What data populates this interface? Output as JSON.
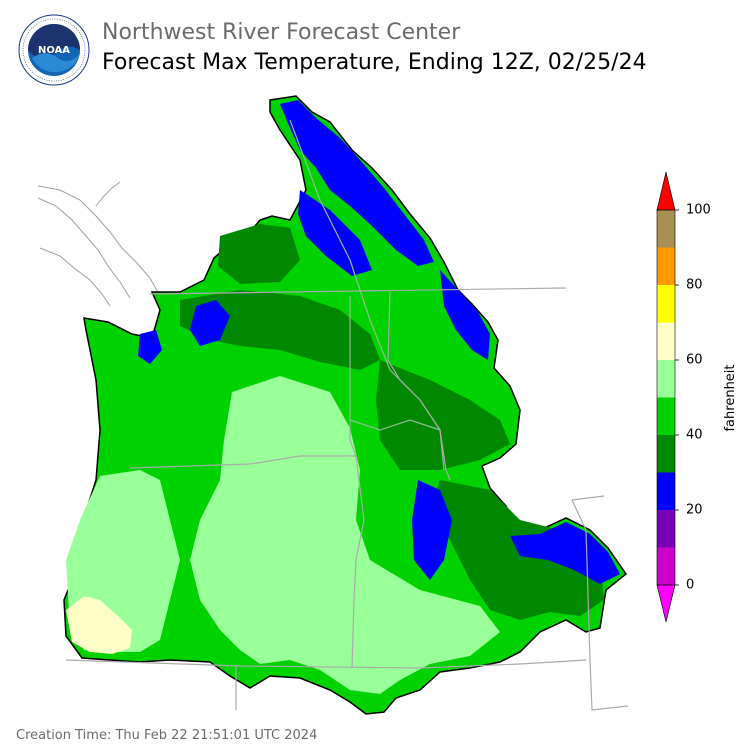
{
  "header": {
    "agency": "Northwest River Forecast Center",
    "product": "Forecast Max Temperature, Ending 12Z, 02/25/24",
    "logo_text": "NOAA",
    "logo_ring_text": "NATIONAL OCEANIC AND ATMOSPHERIC ADMINISTRATION · U.S. DEPARTMENT OF COMMERCE"
  },
  "colorbar": {
    "label": "fahrenheit",
    "min": 0,
    "max": 100,
    "ticks": [
      "0",
      "20",
      "40",
      "60",
      "80",
      "100"
    ],
    "bins": [
      {
        "from": 0,
        "to": 10,
        "color": "#cc00cc"
      },
      {
        "from": 10,
        "to": 20,
        "color": "#7a00b8"
      },
      {
        "from": 20,
        "to": 30,
        "color": "#0000ff"
      },
      {
        "from": 30,
        "to": 40,
        "color": "#008800"
      },
      {
        "from": 40,
        "to": 50,
        "color": "#00d200"
      },
      {
        "from": 50,
        "to": 60,
        "color": "#99ff99"
      },
      {
        "from": 60,
        "to": 70,
        "color": "#ffffc8"
      },
      {
        "from": 70,
        "to": 80,
        "color": "#ffff00"
      },
      {
        "from": 80,
        "to": 90,
        "color": "#ff9900"
      },
      {
        "from": 90,
        "to": 100,
        "color": "#a89050"
      }
    ],
    "under_color": "#ff00ff",
    "over_color": "#ff0000"
  },
  "map": {
    "background": "#ffffff",
    "border_color": "#aaaaaa",
    "coast_color": "#999999"
  },
  "footer": {
    "creation_time": "Creation Time: Thu Feb 22 21:51:01 UTC 2024"
  }
}
